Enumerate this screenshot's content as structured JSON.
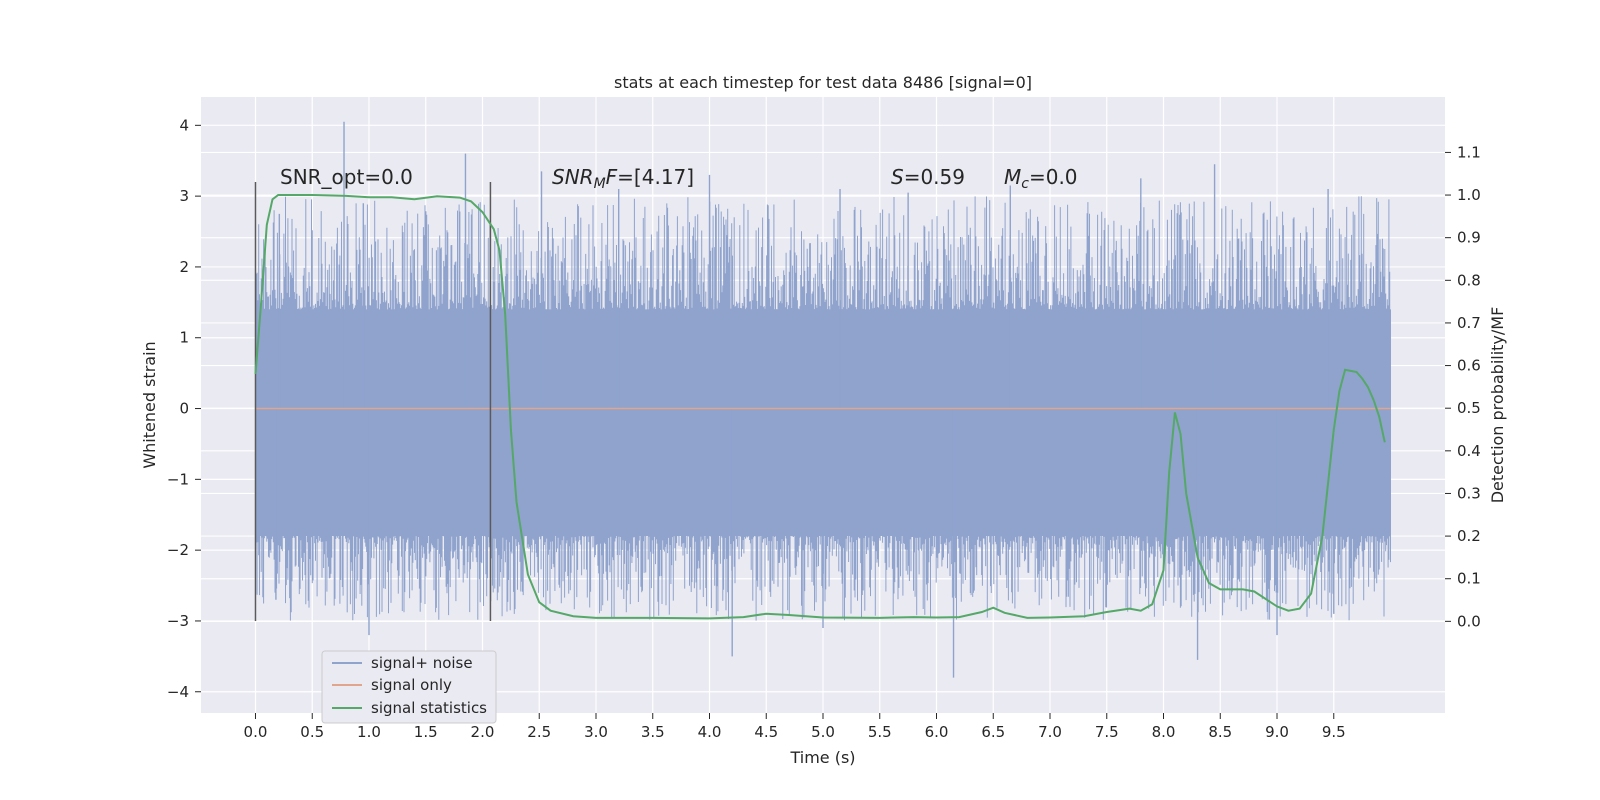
{
  "chart_data": {
    "type": "line",
    "title": "stats at each timestep for test data 8486 [signal=0]",
    "xlabel": "Time (s)",
    "ylabel": "Whitened strain",
    "y2label": "Detection probability/MF",
    "xlim": [
      -0.48,
      10.48
    ],
    "ylim": [
      -4.3,
      4.4
    ],
    "y2lim": [
      -0.215,
      1.23
    ],
    "xticks": [
      "0.0",
      "0.5",
      "1.0",
      "1.5",
      "2.0",
      "2.5",
      "3.0",
      "3.5",
      "4.0",
      "4.5",
      "5.0",
      "5.5",
      "6.0",
      "6.5",
      "7.0",
      "7.5",
      "8.0",
      "8.5",
      "9.0",
      "9.5"
    ],
    "yticks": [
      "4",
      "3",
      "2",
      "1",
      "0",
      "−1",
      "−2",
      "−3",
      "−4"
    ],
    "y2ticks": [
      "1.1",
      "1.0",
      "0.9",
      "0.8",
      "0.7",
      "0.6",
      "0.5",
      "0.4",
      "0.3",
      "0.2",
      "0.1",
      "0.0"
    ],
    "grid": true,
    "legend": {
      "position": "lower-left",
      "entries": [
        {
          "label": "signal+ noise",
          "color": "#8fa3cd"
        },
        {
          "label": "signal only",
          "color": "#e0a58c"
        },
        {
          "label": "signal statistics",
          "color": "#55a868"
        }
      ]
    },
    "annotations": {
      "snr_opt_prefix": "SNR_opt=",
      "snr_opt_value": "0.0",
      "snr_mf_base": "SNR",
      "snr_mf_sub": "M",
      "snr_mf_suffix": "F",
      "snr_mf_value": "=[4.17]",
      "s_label": "S",
      "s_value": "=0.59",
      "mc_label": "M",
      "mc_sub": "c",
      "mc_value": "=0.0"
    },
    "vlines_x": [
      0.0,
      2.07
    ],
    "vlines_y_range": [
      -3.0,
      3.2
    ],
    "series": [
      {
        "name": "signal+ noise",
        "color": "#8fa3cd",
        "t_range": [
          0.0,
          10.0
        ],
        "dense_band": [
          -1.75,
          1.35
        ],
        "spikes": [
          {
            "x": 0.78,
            "y": 4.05
          },
          {
            "x": 1.85,
            "y": 3.6
          },
          {
            "x": 0.21,
            "y": 2.75
          },
          {
            "x": 0.95,
            "y": 2.9
          },
          {
            "x": 2.52,
            "y": 3.35
          },
          {
            "x": 3.2,
            "y": 3.1
          },
          {
            "x": 4.0,
            "y": 3.3
          },
          {
            "x": 5.15,
            "y": 3.1
          },
          {
            "x": 5.75,
            "y": 3.05
          },
          {
            "x": 6.65,
            "y": 3.15
          },
          {
            "x": 7.8,
            "y": 3.25
          },
          {
            "x": 8.45,
            "y": 3.45
          },
          {
            "x": 9.45,
            "y": 3.1
          },
          {
            "x": 0.18,
            "y": -2.7
          },
          {
            "x": 1.0,
            "y": -3.2
          },
          {
            "x": 4.2,
            "y": -3.5
          },
          {
            "x": 5.0,
            "y": -3.1
          },
          {
            "x": 6.15,
            "y": -3.8
          },
          {
            "x": 8.3,
            "y": -3.55
          },
          {
            "x": 9.0,
            "y": -3.2
          },
          {
            "x": 9.5,
            "y": -2.9
          }
        ]
      },
      {
        "name": "signal only",
        "color": "#e0a58c",
        "x": [
          0.0,
          10.0
        ],
        "y": [
          0.0,
          0.0
        ]
      },
      {
        "name": "signal statistics",
        "color": "#55a868",
        "axis": "right",
        "x": [
          0.0,
          0.05,
          0.1,
          0.15,
          0.2,
          0.3,
          0.5,
          0.8,
          1.0,
          1.2,
          1.4,
          1.6,
          1.8,
          1.9,
          2.0,
          2.1,
          2.15,
          2.2,
          2.25,
          2.3,
          2.4,
          2.5,
          2.6,
          2.8,
          3.0,
          3.5,
          4.0,
          4.3,
          4.5,
          4.7,
          5.0,
          5.5,
          5.8,
          6.0,
          6.2,
          6.4,
          6.5,
          6.6,
          6.8,
          7.0,
          7.3,
          7.5,
          7.7,
          7.8,
          7.9,
          8.0,
          8.05,
          8.1,
          8.15,
          8.2,
          8.3,
          8.4,
          8.5,
          8.7,
          8.8,
          9.0,
          9.1,
          9.2,
          9.3,
          9.4,
          9.5,
          9.55,
          9.6,
          9.7,
          9.75,
          9.8,
          9.85,
          9.9,
          9.95
        ],
        "y": [
          0.58,
          0.75,
          0.93,
          0.99,
          1.0,
          1.0,
          1.0,
          0.998,
          0.995,
          0.995,
          0.99,
          0.997,
          0.994,
          0.985,
          0.96,
          0.92,
          0.87,
          0.72,
          0.45,
          0.28,
          0.11,
          0.045,
          0.025,
          0.012,
          0.008,
          0.008,
          0.007,
          0.01,
          0.018,
          0.015,
          0.009,
          0.008,
          0.01,
          0.009,
          0.01,
          0.022,
          0.032,
          0.02,
          0.008,
          0.009,
          0.012,
          0.022,
          0.03,
          0.025,
          0.04,
          0.12,
          0.35,
          0.49,
          0.44,
          0.3,
          0.15,
          0.09,
          0.075,
          0.075,
          0.07,
          0.035,
          0.025,
          0.03,
          0.065,
          0.2,
          0.45,
          0.54,
          0.59,
          0.585,
          0.57,
          0.55,
          0.52,
          0.48,
          0.42
        ]
      }
    ]
  }
}
